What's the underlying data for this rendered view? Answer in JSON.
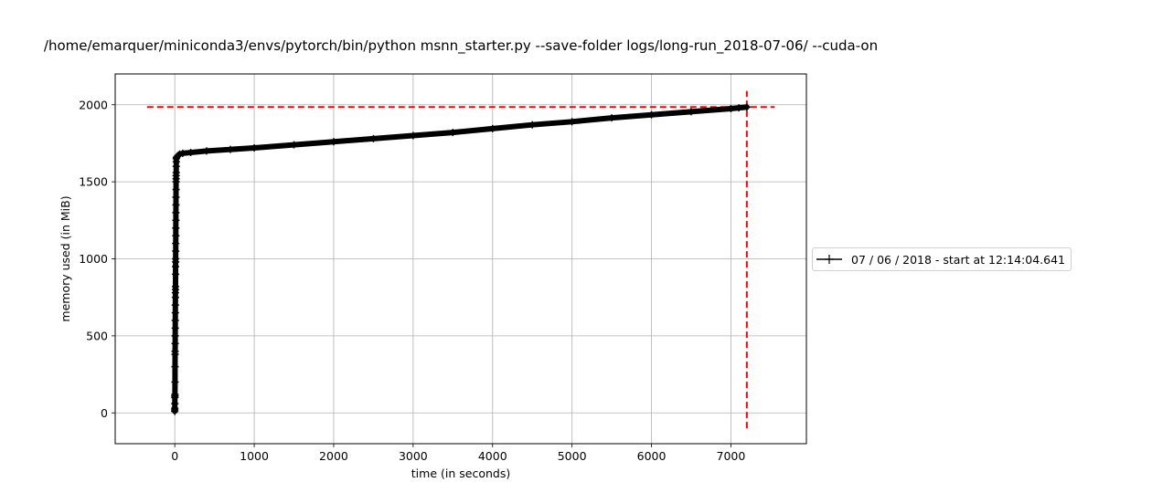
{
  "chart_data": {
    "type": "line",
    "title": "/home/emarquer/miniconda3/envs/pytorch/bin/python msnn_starter.py --save-folder logs/long-run_2018-07-06/ --cuda-on",
    "xlabel": "time (in seconds)",
    "ylabel": "memory used (in MiB)",
    "xlim": [
      -750,
      7950
    ],
    "ylim": [
      -200,
      2200
    ],
    "xticks": [
      0,
      1000,
      2000,
      3000,
      4000,
      5000,
      6000,
      7000
    ],
    "yticks": [
      0,
      500,
      1000,
      1500,
      2000
    ],
    "grid": true,
    "legend_position": "outside-right",
    "series": [
      {
        "name": "07 / 06 / 2018 - start at 12:14:04.641",
        "color": "#000000",
        "marker": "+",
        "x": [
          0,
          0,
          0,
          1,
          1,
          2,
          2,
          3,
          3,
          4,
          4,
          5,
          5,
          6,
          6,
          7,
          7,
          8,
          8,
          9,
          9,
          10,
          10,
          11,
          11,
          12,
          12,
          13,
          13,
          14,
          14,
          15,
          15,
          16,
          16,
          17,
          17,
          18,
          18,
          19,
          19,
          20,
          25,
          30,
          40,
          60,
          100,
          200,
          400,
          700,
          1000,
          1500,
          2000,
          2500,
          3000,
          3500,
          4000,
          4500,
          5000,
          5500,
          6000,
          6500,
          7000,
          7100,
          7200
        ],
        "y": [
          10,
          20,
          30,
          60,
          100,
          110,
          120,
          200,
          300,
          380,
          400,
          450,
          500,
          550,
          600,
          650,
          700,
          750,
          780,
          800,
          820,
          900,
          950,
          980,
          1000,
          1050,
          1100,
          1150,
          1200,
          1250,
          1300,
          1350,
          1400,
          1450,
          1500,
          1520,
          1540,
          1560,
          1600,
          1630,
          1650,
          1655,
          1660,
          1665,
          1670,
          1680,
          1685,
          1690,
          1700,
          1710,
          1720,
          1740,
          1760,
          1780,
          1800,
          1820,
          1845,
          1870,
          1890,
          1915,
          1935,
          1955,
          1975,
          1980,
          1985
        ]
      }
    ],
    "reference_lines": [
      {
        "orientation": "horizontal",
        "value": 1985,
        "from": -350,
        "to": 7550,
        "color": "#ff0000",
        "style": "dashed"
      },
      {
        "orientation": "vertical",
        "value": 7200,
        "from": -100,
        "to": 2090,
        "color": "#ff0000",
        "style": "dashed"
      }
    ]
  }
}
